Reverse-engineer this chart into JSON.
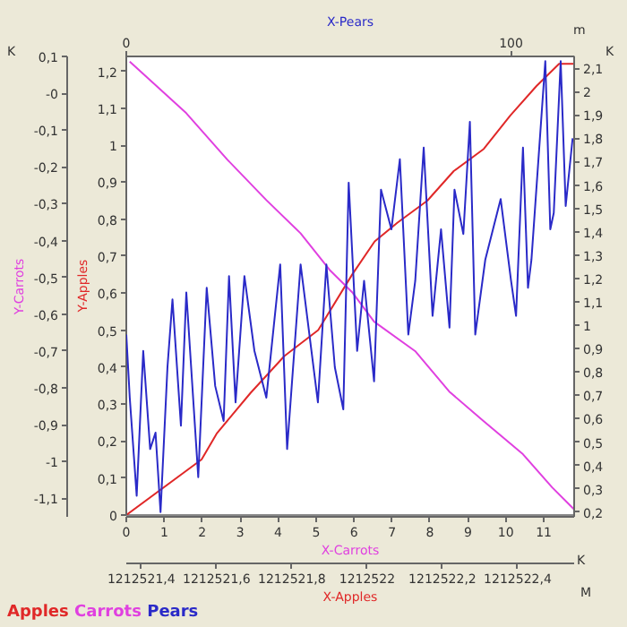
{
  "chart_data": [
    {
      "type": "line",
      "xlabel": "X-Apples",
      "ylabel": "Y-Apples",
      "xlim": [
        1212521.36,
        1212522.55
      ],
      "xticks": [
        {
          "value": 1212521.4,
          "label": "1212521,4"
        },
        {
          "value": 1212521.6,
          "label": "1212521,6"
        },
        {
          "value": 1212521.8,
          "label": "1212521,8"
        },
        1212522,
        {
          "value": 1212522.2,
          "label": "1212522,2"
        },
        {
          "value": 1212522.4,
          "label": "1212522,4"
        }
      ],
      "ylim": [
        0,
        1.24
      ],
      "yticks": [
        0,
        {
          "value": 0.1,
          "label": "0,1"
        },
        {
          "value": 0.2,
          "label": "0,2"
        },
        {
          "value": 0.3,
          "label": "0,3"
        },
        {
          "value": 0.4,
          "label": "0,4"
        },
        {
          "value": 0.5,
          "label": "0,5"
        },
        {
          "value": 0.6,
          "label": "0,6"
        },
        {
          "value": 0.7,
          "label": "0,7"
        },
        {
          "value": 0.8,
          "label": "0,8"
        },
        {
          "value": 0.9,
          "label": "0,9"
        },
        1,
        {
          "value": 1.1,
          "label": "1,1"
        },
        {
          "value": 1.2,
          "label": "1,2"
        }
      ],
      "annotations": [
        "K",
        "M"
      ],
      "grid": false,
      "legend": "bottom",
      "marker": "none",
      "line_style": "solid",
      "series": [
        {
          "name": "Apples",
          "color": "#e02828",
          "x": [
            1212521.36,
            1212521.56,
            1212521.6,
            1212521.69,
            1212521.78,
            1212521.87,
            1212521.96,
            1212522.02,
            1212522.08,
            1212522.16,
            1212522.23,
            1212522.31,
            1212522.38,
            1212522.45,
            1212522.51,
            1212522.55
          ],
          "values": [
            0,
            0.15,
            0.22,
            0.33,
            0.43,
            0.5,
            0.65,
            0.74,
            0.79,
            0.85,
            0.93,
            0.99,
            1.08,
            1.16,
            1.22,
            1.22
          ]
        }
      ]
    },
    {
      "type": "line",
      "xlabel": "X-Carrots",
      "ylabel": "Y-Carrots",
      "xlim": [
        0,
        11.8
      ],
      "xticks": [
        0,
        1,
        2,
        3,
        4,
        5,
        6,
        7,
        8,
        9,
        10,
        11
      ],
      "ylim": [
        -1.15,
        0.1
      ],
      "yticks": [
        {
          "value": 0.1,
          "label": "0,1"
        },
        {
          "value": 0,
          "label": "-0"
        },
        {
          "value": -0.1,
          "label": "-0,1"
        },
        {
          "value": -0.2,
          "label": "-0,2"
        },
        {
          "value": -0.3,
          "label": "-0,3"
        },
        {
          "value": -0.4,
          "label": "-0,4"
        },
        {
          "value": -0.5,
          "label": "-0,5"
        },
        {
          "value": -0.6,
          "label": "-0,6"
        },
        {
          "value": -0.7,
          "label": "-0,7"
        },
        {
          "value": -0.8,
          "label": "-0,8"
        },
        {
          "value": -0.9,
          "label": "-0,9"
        },
        -1,
        {
          "value": -1.1,
          "label": "-1,1"
        }
      ],
      "annotations": [
        "K"
      ],
      "grid": false,
      "legend": "bottom",
      "marker": "none",
      "line_style": "solid",
      "series": [
        {
          "name": "Carrots",
          "color": "#e040e0",
          "x": [
            0.09,
            1.58,
            2.66,
            3.69,
            4.59,
            5.36,
            5.95,
            6.53,
            7.61,
            8.51,
            9.41,
            10.45,
            11.22,
            11.8
          ],
          "values": [
            0.086,
            -0.054,
            -0.18,
            -0.29,
            -0.38,
            -0.48,
            -0.54,
            -0.62,
            -0.7,
            -0.81,
            -0.89,
            -0.98,
            -1.07,
            -1.13
          ]
        }
      ]
    },
    {
      "type": "line",
      "xlabel": "X-Pears",
      "xlim": [
        0,
        116.4
      ],
      "xticks": [
        0,
        100
      ],
      "ylim": [
        0.18,
        2.15
      ],
      "yticks": [
        {
          "value": 0.2,
          "label": "0,2"
        },
        {
          "value": 0.3,
          "label": "0,3"
        },
        {
          "value": 0.4,
          "label": "0,4"
        },
        {
          "value": 0.5,
          "label": "0,5"
        },
        {
          "value": 0.6,
          "label": "0,6"
        },
        {
          "value": 0.7,
          "label": "0,7"
        },
        {
          "value": 0.8,
          "label": "0,8"
        },
        {
          "value": 0.9,
          "label": "0,9"
        },
        1,
        {
          "value": 1.1,
          "label": "1,1"
        },
        {
          "value": 1.2,
          "label": "1,2"
        },
        {
          "value": 1.3,
          "label": "1,3"
        },
        {
          "value": 1.4,
          "label": "1,4"
        },
        {
          "value": 1.5,
          "label": "1,5"
        },
        {
          "value": 1.6,
          "label": "1,6"
        },
        {
          "value": 1.7,
          "label": "1,7"
        },
        {
          "value": 1.8,
          "label": "1,8"
        },
        {
          "value": 1.9,
          "label": "1,9"
        },
        2,
        {
          "value": 2.1,
          "label": "2,1"
        }
      ],
      "annotations": [
        "m",
        "K"
      ],
      "grid": false,
      "legend": "bottom",
      "marker": "none",
      "line_style": "solid",
      "series": [
        {
          "name": "Pears",
          "color": "#2a2ac8",
          "x": [
            0,
            0.9,
            2.7,
            4.4,
            6.2,
            7.6,
            8.9,
            10.7,
            12.0,
            14.2,
            15.6,
            18.7,
            20.9,
            23.1,
            25.3,
            26.7,
            28.4,
            30.7,
            33.3,
            36.4,
            40.0,
            41.8,
            45.3,
            49.8,
            52.0,
            54.2,
            56.4,
            57.8,
            60.0,
            61.8,
            64.4,
            66.2,
            68.9,
            71.1,
            73.3,
            75.1,
            77.3,
            79.6,
            81.8,
            84.0,
            85.3,
            87.6,
            89.3,
            90.7,
            93.3,
            97.3,
            100.0,
            101.3,
            103.1,
            104.4,
            105.3,
            108.9,
            110.2,
            111.1,
            112.9,
            114.2,
            116.0
          ],
          "values": [
            0.96,
            0.69,
            0.27,
            0.89,
            0.47,
            0.54,
            0.2,
            0.82,
            1.11,
            0.57,
            1.14,
            0.35,
            1.16,
            0.74,
            0.59,
            1.21,
            0.67,
            1.21,
            0.89,
            0.69,
            1.26,
            0.47,
            1.26,
            0.67,
            1.26,
            0.82,
            0.64,
            1.61,
            0.89,
            1.19,
            0.76,
            1.58,
            1.41,
            1.71,
            0.96,
            1.19,
            1.76,
            1.04,
            1.41,
            0.99,
            1.58,
            1.39,
            1.87,
            0.96,
            1.28,
            1.54,
            1.19,
            1.04,
            1.76,
            1.16,
            1.28,
            2.13,
            1.41,
            1.48,
            2.13,
            1.51,
            1.8
          ]
        }
      ]
    }
  ]
}
